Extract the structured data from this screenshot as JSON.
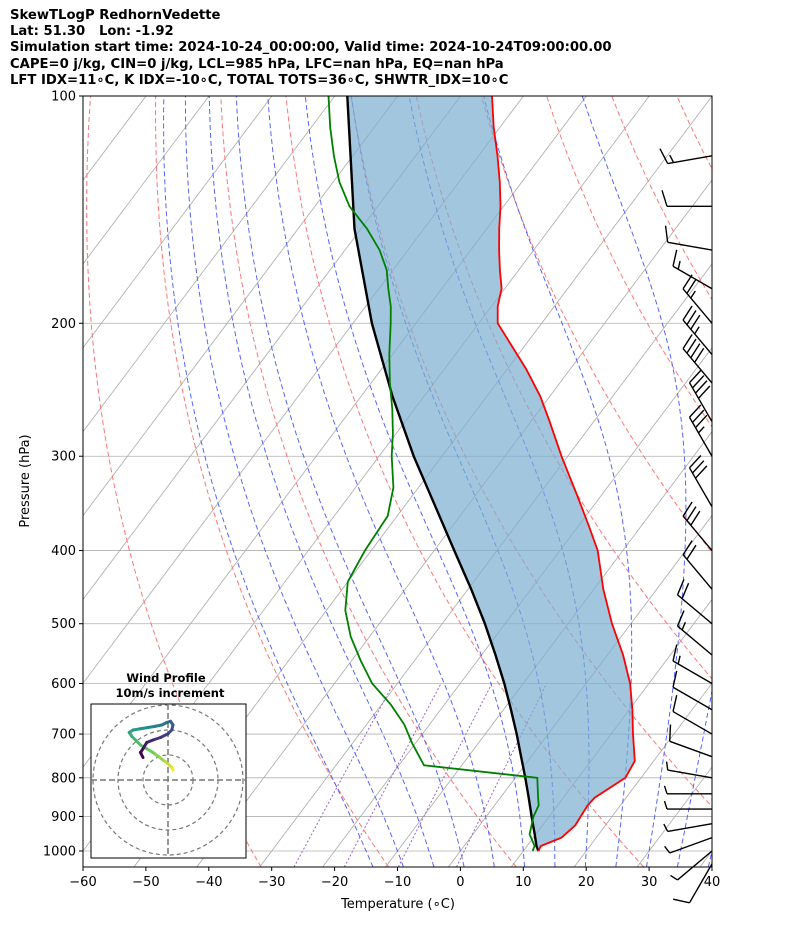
{
  "header": {
    "line1": "SkewTLogP RedhornVedette",
    "line2": "Lat: 51.30   Lon: -1.92",
    "line3": "Simulation start time: 2024-10-24_00:00:00, Valid time: 2024-10-24T09:00:00.00",
    "line4": "CAPE=0 j/kg, CIN=0 j/kg, LCL=985 hPa, LFC=nan hPa, EQ=nan hPa",
    "line5": "LFT IDX=11∘C, K IDX=-10∘C, TOTAL TOTS=36∘C, SHWTR_IDX=10∘C"
  },
  "chart_data": [
    {
      "type": "line",
      "subtype": "skew-t log-p",
      "xlabel": "Temperature (∘C)",
      "ylabel": "Pressure (hPa)",
      "x_ticks": [
        -60,
        -50,
        -40,
        -30,
        -20,
        -10,
        0,
        10,
        20,
        30,
        40
      ],
      "y_ticks": [
        100,
        200,
        300,
        400,
        500,
        600,
        700,
        800,
        900,
        1000
      ],
      "xlim": [
        -60,
        40
      ],
      "ylim": [
        1050,
        100
      ],
      "y_scale": "log",
      "grid": true,
      "colors": {
        "temperature": "#ff0000",
        "dewpoint": "#008000",
        "parcel": "#000000",
        "cape_cin_fill": "#7aaed0",
        "dry_adiabats": "#ff7777",
        "moist_adiabats": "#5566ff",
        "mixing_ratio": "#9966cc",
        "isotherms": "#aaaaaa"
      },
      "series": [
        {
          "key": "temperature",
          "p": [
            1000,
            985,
            960,
            925,
            900,
            870,
            850,
            800,
            760,
            700,
            650,
            600,
            550,
            500,
            450,
            400,
            370,
            340,
            300,
            270,
            250,
            230,
            210,
            200,
            190,
            180,
            170,
            160,
            150,
            140,
            130,
            120,
            110,
            100
          ],
          "values": [
            12.4,
            12.2,
            14.5,
            15.2,
            15.0,
            14.8,
            15.0,
            17.5,
            17.0,
            13.5,
            10.5,
            7.0,
            2.5,
            -3.0,
            -8.5,
            -14.0,
            -18.5,
            -23.5,
            -31.0,
            -37.0,
            -41.5,
            -47.0,
            -53.5,
            -57.0,
            -59.0,
            -60.5,
            -63.0,
            -65.5,
            -68.0,
            -70.5,
            -73.5,
            -77.0,
            -81.0,
            -85.0
          ]
        },
        {
          "key": "dewpoint",
          "p": [
            1000,
            985,
            950,
            900,
            870,
            850,
            800,
            770,
            720,
            680,
            640,
            600,
            560,
            520,
            480,
            440,
            400,
            360,
            330,
            300,
            280,
            260,
            240,
            220,
            200,
            190,
            180,
            170,
            160,
            150,
            140,
            130,
            120,
            110,
            100
          ],
          "values": [
            11.5,
            11.2,
            9.0,
            7.5,
            7.0,
            6.0,
            3.5,
            -16.0,
            -20.5,
            -24.0,
            -28.5,
            -34.0,
            -38.5,
            -43.0,
            -47.0,
            -50.0,
            -51.0,
            -51.5,
            -54.0,
            -58.0,
            -60.5,
            -63.5,
            -67.0,
            -70.5,
            -74.0,
            -76.0,
            -78.5,
            -81.0,
            -84.5,
            -89.0,
            -94.5,
            -99.0,
            -103.0,
            -107.0,
            -111.0
          ]
        },
        {
          "key": "parcel",
          "p": [
            1000,
            985,
            950,
            900,
            850,
            800,
            750,
            700,
            650,
            600,
            550,
            500,
            450,
            400,
            350,
            300,
            250,
            200,
            150,
            100
          ],
          "values": [
            12.4,
            11.5,
            9.8,
            7.2,
            4.5,
            1.6,
            -1.6,
            -5.0,
            -8.8,
            -13.0,
            -17.8,
            -23.2,
            -29.5,
            -36.8,
            -45.0,
            -54.5,
            -65.0,
            -77.0,
            -91.0,
            -108.0
          ]
        }
      ],
      "wind_barbs": {
        "p": [
          1040,
          1000,
          960,
          920,
          880,
          840,
          800,
          750,
          700,
          650,
          600,
          550,
          500,
          450,
          400,
          350,
          300,
          270,
          240,
          220,
          200,
          180,
          160,
          140,
          120
        ],
        "speed_kt": [
          12,
          8,
          6,
          5,
          6,
          7,
          8,
          10,
          10,
          10,
          15,
          15,
          20,
          20,
          30,
          30,
          35,
          40,
          40,
          35,
          25,
          15,
          10,
          10,
          15
        ],
        "direction_deg": [
          210,
          230,
          250,
          260,
          270,
          270,
          280,
          290,
          300,
          300,
          300,
          310,
          310,
          320,
          320,
          330,
          330,
          330,
          320,
          320,
          320,
          300,
          280,
          270,
          260
        ]
      }
    },
    {
      "type": "scatter",
      "subtype": "hodograph",
      "title": "Wind Profile",
      "subtitle": "10m/s increment",
      "rings_m_s": [
        10,
        20,
        30
      ],
      "u": [
        2.0,
        1.5,
        0.5,
        -0.5,
        -2.0,
        -4.0,
        -6.0,
        -8.5,
        -11.0,
        -13.0,
        -14.5,
        -15.5,
        -14.0,
        -11.0,
        -8.0,
        -5.0,
        -2.5,
        -0.5,
        1.0,
        2.0,
        1.5,
        0.0,
        -3.0,
        -6.0,
        -8.5,
        -10.0,
        -11.0,
        -10.0
      ],
      "v": [
        4.0,
        5.0,
        6.0,
        7.0,
        8.0,
        9.5,
        11.0,
        12.5,
        14.0,
        16.0,
        17.5,
        19.0,
        20.0,
        20.5,
        21.0,
        21.5,
        22.0,
        23.0,
        23.5,
        22.0,
        20.0,
        18.5,
        17.0,
        16.0,
        15.0,
        12.5,
        11.0,
        9.0
      ]
    }
  ]
}
